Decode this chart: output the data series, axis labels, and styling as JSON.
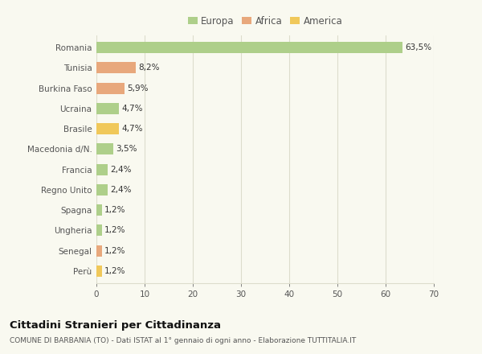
{
  "countries": [
    "Romania",
    "Tunisia",
    "Burkina Faso",
    "Ucraina",
    "Brasile",
    "Macedonia d/N.",
    "Francia",
    "Regno Unito",
    "Spagna",
    "Ungheria",
    "Senegal",
    "Perù"
  ],
  "values": [
    63.5,
    8.2,
    5.9,
    4.7,
    4.7,
    3.5,
    2.4,
    2.4,
    1.2,
    1.2,
    1.2,
    1.2
  ],
  "labels": [
    "63,5%",
    "8,2%",
    "5,9%",
    "4,7%",
    "4,7%",
    "3,5%",
    "2,4%",
    "2,4%",
    "1,2%",
    "1,2%",
    "1,2%",
    "1,2%"
  ],
  "colors": [
    "#aecf8a",
    "#e8a87c",
    "#e8a87c",
    "#aecf8a",
    "#f0c85a",
    "#aecf8a",
    "#aecf8a",
    "#aecf8a",
    "#aecf8a",
    "#aecf8a",
    "#e8a87c",
    "#f0c85a"
  ],
  "legend_labels": [
    "Europa",
    "Africa",
    "America"
  ],
  "legend_colors": [
    "#aecf8a",
    "#e8a87c",
    "#f0c85a"
  ],
  "title": "Cittadini Stranieri per Cittadinanza",
  "subtitle": "COMUNE DI BARBANIA (TO) - Dati ISTAT al 1° gennaio di ogni anno - Elaborazione TUTTITALIA.IT",
  "xlim": [
    0,
    70
  ],
  "xticks": [
    0,
    10,
    20,
    30,
    40,
    50,
    60,
    70
  ],
  "background_color": "#f9f9f0",
  "grid_color": "#ddddcc",
  "bar_height": 0.55
}
